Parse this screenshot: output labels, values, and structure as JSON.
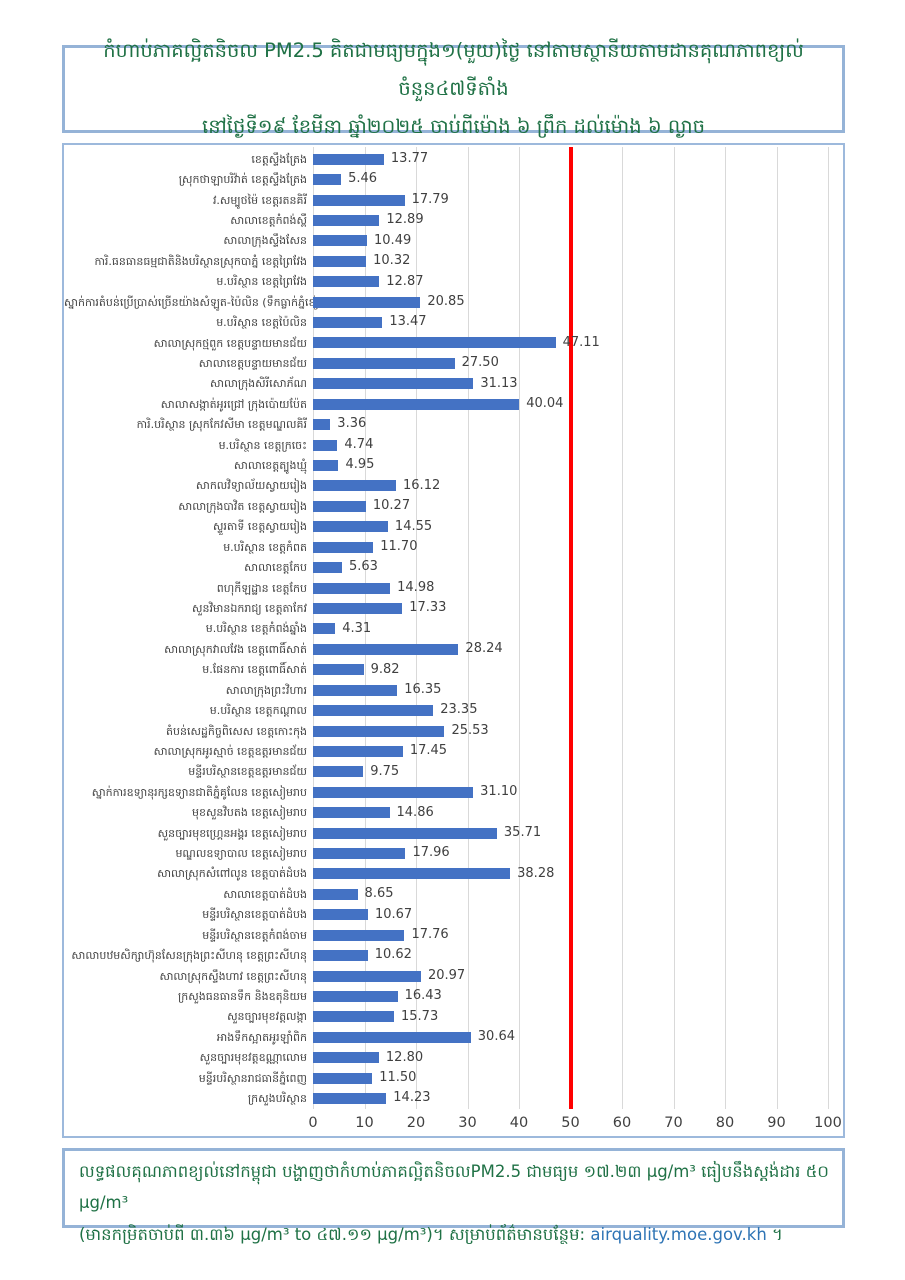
{
  "title": {
    "line1": "កំហាប់ភាគល្អិតនិចល PM2.5 គិតជាមធ្យមក្នុង១(មួយ)ថ្ងៃ នៅតាមស្ថានីយតាមដានគុណភាពខ្យល់ចំនួន៤៧ទីតាំង",
    "line2": "នៅថ្ងៃទី១៩ ខែមីនា ឆ្នាំ២០២៥ ចាប់ពីម៉ោង ៦ ព្រឹក ដល់ម៉ោង ៦ ល្ងាច"
  },
  "chart_data": {
    "type": "bar",
    "orientation": "horizontal",
    "title": "កំហាប់ភាគល្អិតនិចល PM2.5 គិតជាមធ្យមក្នុង១(មួយ)ថ្ងៃ នៅតាមស្ថានីយតាមដានគុណភាពខ្យល់ចំនួន៤៧ទីតាំង នៅថ្ងៃទី១៩ ខែមីនា ឆ្នាំ២០២៥ ចាប់ពីម៉ោង ៦ ព្រឹក ដល់ម៉ោង ៦ ល្ងាច",
    "xlabel": "",
    "ylabel": "",
    "unit": "μg/m³",
    "xlim": [
      0,
      100
    ],
    "x_ticks": [
      0,
      10,
      20,
      30,
      40,
      50,
      60,
      70,
      80,
      90,
      100
    ],
    "reference_line": 50,
    "grid": true,
    "categories": [
      "ខេត្តស្ទឹងត្រែង",
      "ស្រុកថាឡាបរិវ៉ាត់ ខេត្តស្ទឹងត្រែង",
      "វ.សម្បូថម៉ៃ ខេត្តរតនគិរី",
      "សាលាខេត្តកំពង់ស្ពឺ",
      "សាលាក្រុងស្ទឹងសែន",
      "ការិ.ធនធានធម្មជាតិនិងបរិស្ថានស្រុកបាភ្នំ ខេត្តព្រៃវែង",
      "ម.បរិស្ថាន ខេត្តព្រៃវែង",
      "ស្នាក់ការតំបន់ប្រើប្រាស់ច្រើនយ៉ាងសំឡូត-ប៉ៃលិន (ទឹកធ្លាក់ភ្នំខៀវ)",
      "ម.បរិស្ថាន ខេត្តប៉ៃលិន",
      "សាលាស្រុកថ្មពួក ខេត្តបន្ទាយមានជ័យ",
      "សាលាខេត្តបន្ទាយមានជ័យ",
      "សាលាក្រុងសិរីសោភ័ណ",
      "សាលាសង្កាត់អូរជ្រៅ ក្រុងប៉ោយប៉ែត",
      "ការិ.បរិស្ថាន ស្រុកកែវសីមា ខេត្តមណ្ឌលគិរី",
      "ម.បរិស្ថាន ខេត្តក្រចេះ",
      "សាលាខេត្តត្បូងឃ្មុំ",
      "សាកលវិទ្យាល័យស្វាយរៀង",
      "សាលាក្រុងបាវិត ខេត្តស្វាយរៀង",
      "ស្ទួរតាទី ខេត្តស្វាយរៀង",
      "ម.បរិស្ថាន ខេត្តកំពត",
      "សាលាខេត្តកែប",
      "ពហុកីឡដ្ឋាន ខេត្តកែប",
      "សួនវិមានឯករាជ្យ ខេត្តតាកែវ",
      "ម.បរិស្ថាន ខេត្តកំពង់ឆ្នាំង",
      "សាលាស្រុកវាលវែង ខេត្តពោធិ៍សាត់",
      "ម.ផែនការ ខេត្តពោធិ៍សាត់",
      "សាលាក្រុងព្រះវិហារ",
      "ម.បរិស្ថាន ខេត្តកណ្តាល",
      "តំបន់សេដ្ឋកិច្ចពិសេស ខេត្តកោះកុង",
      "សាលាស្រុកអូរស្មាច់ ខេត្តឧត្តរមានជ័យ",
      "មន្ទីរបរិស្ថានខេត្តឧត្តរមានជ័យ",
      "ស្នាក់ការឧទ្យានុរក្សឧទ្យានជាតិភ្នំគូលែន ខេត្តសៀមរាប",
      "មុខសួនវិបតង ខេត្តសៀមរាប",
      "សួនច្បារមុខហ្គ្រេនអង្គរ ខេត្តសៀមរាប",
      "មណ្ឌលឧទ្យាបាល ខេត្តសៀមរាប",
      "សាលាស្រុកសំពៅលូន ខេត្តបាត់ដំបង",
      "សាលាខេត្តបាត់ដំបង",
      "មន្ទីរបរិស្ថានខេត្តបាត់ដំបង",
      "មន្ទីរបរិស្ថានខេត្តកំពង់ចាម",
      "សាលាបឋមសិក្សាហ៊ុនសែនក្រុងព្រះសីហនុ ខេត្តព្រះសីហនុ",
      "សាលាស្រុកស្ទឹងហាវ ខេត្តព្រះសីហនុ",
      "ក្រសួងធនធានទឹក និងឧតុនិយម",
      "សួនច្បារមុខវត្តលង្កា",
      "អាងទឹកស្អាតអូរឡាំពិក",
      "សួនច្បារមុខវត្តឧណ្ណាលោម",
      "មន្ទីរបរិស្ថានរាជធានីភ្នំពេញ",
      "ក្រសួងបរិស្ថាន"
    ],
    "values": [
      13.77,
      5.46,
      17.79,
      12.89,
      10.49,
      10.32,
      12.87,
      20.85,
      13.47,
      47.11,
      27.5,
      31.13,
      40.04,
      3.36,
      4.74,
      4.95,
      16.12,
      10.27,
      14.55,
      11.7,
      5.63,
      14.98,
      17.33,
      4.31,
      28.24,
      9.82,
      16.35,
      23.35,
      25.53,
      17.45,
      9.75,
      31.1,
      14.86,
      35.71,
      17.96,
      38.28,
      8.65,
      10.67,
      17.76,
      10.62,
      20.97,
      16.43,
      15.73,
      30.64,
      12.8,
      11.5,
      14.23
    ]
  },
  "footer": {
    "line1": "លទ្ធផលគុណភាពខ្យល់នៅកម្ពុជា បង្ហាញថាកំហាប់ភាគល្អិតនិចលPM2.5 ជាមធ្យម ១៧.២៣ μg/m³ ធៀបនឹងស្តង់ដារ ៥០ μg/m³",
    "line2_prefix": "(មានកម្រិតចាប់ពី ៣.៣៦ μg/m³ to ៤៧.១១ μg/m³)។ សម្រាប់ព័ត៌មានបន្ថែម: ",
    "link": "airquality.moe.gov.kh",
    "line2_suffix": " ។"
  },
  "colors": {
    "bar": "#4472C4",
    "reference_line": "#FF0000",
    "title_text": "#1F7145",
    "box_border": "#95B3D7",
    "gridline": "#D9D9D9",
    "value_text": "#404040",
    "link": "#2E74B5"
  }
}
